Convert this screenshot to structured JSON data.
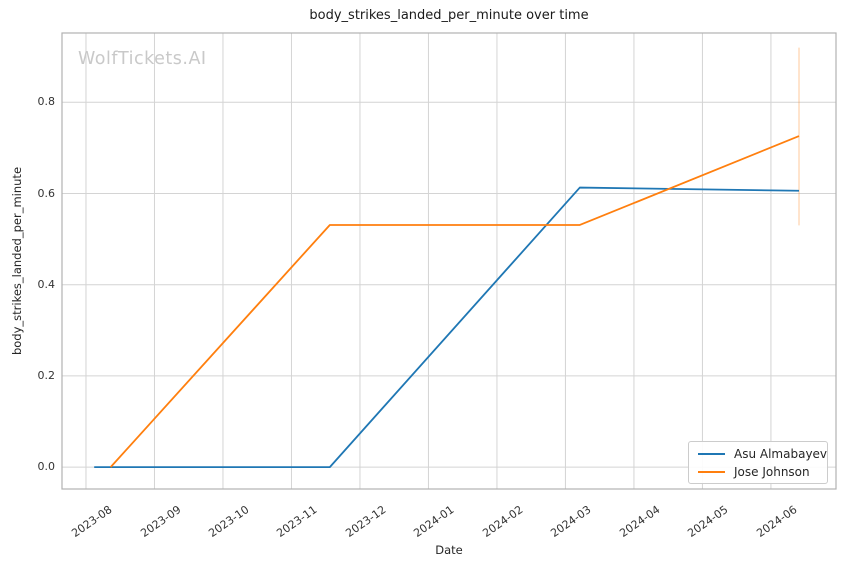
{
  "watermark": {
    "text": "WolfTickets.AI",
    "color": "#c9c9c9"
  },
  "chart_data": {
    "type": "line",
    "title": "body_strikes_landed_per_minute over time",
    "xlabel": "Date",
    "ylabel": "body_strikes_landed_per_minute",
    "grid": true,
    "grid_color": "#d4d4d4",
    "spine_color": "#b2b2b2",
    "legend_position": "lower-right",
    "x_axis": {
      "tick_labels": [
        "2023-08",
        "2023-09",
        "2023-10",
        "2023-11",
        "2023-12",
        "2024-01",
        "2024-02",
        "2024-03",
        "2024-04",
        "2024-05",
        "2024-06"
      ],
      "range_months": [
        -0.35,
        10.95
      ],
      "tick_rotation_deg": 35
    },
    "y_axis": {
      "ticks": [
        0.0,
        0.2,
        0.4,
        0.6,
        0.8
      ],
      "range": [
        -0.048,
        0.952
      ]
    },
    "series": [
      {
        "name": "Asu Almabayev",
        "color": "#1f77b4",
        "points": [
          {
            "approx_date": "2023-08-05",
            "x_months": 0.12,
            "y": 0.0
          },
          {
            "approx_date": "2023-11-18",
            "x_months": 3.56,
            "y": 0.0
          },
          {
            "approx_date": "2024-03-08",
            "x_months": 7.21,
            "y": 0.613
          },
          {
            "approx_date": "2024-06-14",
            "x_months": 10.41,
            "y": 0.606
          }
        ]
      },
      {
        "name": "Jose Johnson",
        "color": "#ff7f0e",
        "points": [
          {
            "approx_date": "2023-08-12",
            "x_months": 0.36,
            "y": 0.0
          },
          {
            "approx_date": "2023-11-18",
            "x_months": 3.56,
            "y": 0.531
          },
          {
            "approx_date": "2024-03-08",
            "x_months": 7.21,
            "y": 0.531
          },
          {
            "approx_date": "2024-06-14",
            "x_months": 10.41,
            "y": 0.726
          }
        ],
        "error_bar": {
          "x_months": 10.41,
          "y_low": 0.53,
          "y_high": 0.92,
          "opacity": 0.32
        }
      }
    ]
  }
}
